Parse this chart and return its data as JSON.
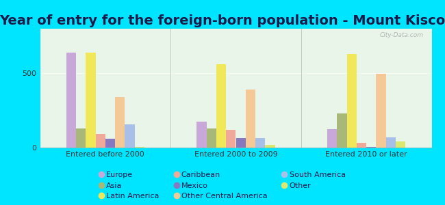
{
  "title": "Year of entry for the foreign-born population - Mount Kisco",
  "categories": [
    "Entered before 2000",
    "Entered 2000 to 2009",
    "Entered 2010 or later"
  ],
  "series_order": [
    "Europe",
    "Asia",
    "Latin America",
    "Caribbean",
    "Mexico",
    "Other Central America",
    "South America",
    "Other"
  ],
  "series": {
    "Europe": [
      640,
      175,
      125
    ],
    "Asia": [
      130,
      130,
      230
    ],
    "Latin America": [
      640,
      560,
      630
    ],
    "Caribbean": [
      90,
      120,
      30
    ],
    "Mexico": [
      60,
      65,
      5
    ],
    "Other Central America": [
      340,
      390,
      495
    ],
    "South America": [
      155,
      65,
      70
    ],
    "Other": [
      5,
      20,
      40
    ]
  },
  "colors": {
    "Europe": "#c8a8d8",
    "Asia": "#a8b878",
    "Latin America": "#f0e858",
    "Caribbean": "#f0a898",
    "Mexico": "#8878c0",
    "Other Central America": "#f5c898",
    "South America": "#a8c0e8",
    "Other": "#d8e870"
  },
  "background_outer": "#00e5ff",
  "background_plot": "#e8f5e8",
  "ylim": [
    0,
    800
  ],
  "yticks": [
    0,
    500
  ],
  "bar_width": 0.075,
  "title_fontsize": 14,
  "tick_fontsize": 8,
  "legend_fontsize": 8,
  "title_color": "#1a1a4a",
  "legend_order": [
    "Europe",
    "Asia",
    "Latin America",
    "Caribbean",
    "Mexico",
    "Other Central America",
    "South America",
    "Other"
  ]
}
